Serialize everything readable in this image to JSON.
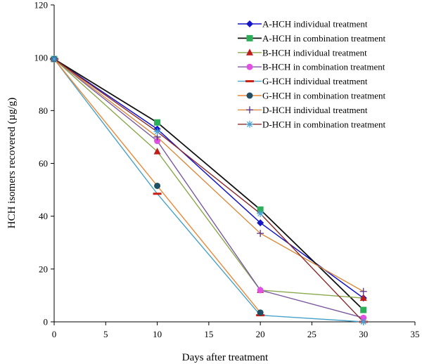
{
  "chart_data": {
    "type": "line",
    "title": "",
    "xlabel": "Days after treatment",
    "ylabel": "HCH isomers recovered (µg/g)",
    "xlim": [
      0,
      35
    ],
    "ylim": [
      0,
      120
    ],
    "xticks": [
      0,
      5,
      10,
      15,
      20,
      25,
      30,
      35
    ],
    "yticks": [
      0,
      20,
      40,
      60,
      80,
      100,
      120
    ],
    "grid": false,
    "legend_position": "top-right",
    "x": [
      0,
      10,
      20,
      30
    ],
    "series": [
      {
        "name": "A-HCH individual treatment",
        "values": [
          99.5,
          73,
          37.5,
          9
        ],
        "color": "#1515c8",
        "marker": "diamond"
      },
      {
        "name": "A-HCH in combination treatment",
        "values": [
          99.5,
          75.5,
          42.5,
          4.5
        ],
        "color": "#111111",
        "marker_color": "#2cae5a",
        "marker": "square"
      },
      {
        "name": "B-HCH individual treatment",
        "values": [
          99.5,
          64.5,
          12,
          9
        ],
        "color": "#8aa94e",
        "marker_color": "#c01c1c",
        "marker": "triangle"
      },
      {
        "name": "B-HCH in combination treatment",
        "values": [
          99.5,
          68.5,
          12,
          1.5
        ],
        "color": "#7b5aa0",
        "marker_color": "#e24fe3",
        "marker": "circle"
      },
      {
        "name": "G-HCH individual treatment",
        "values": [
          99.5,
          48.5,
          2.5,
          0
        ],
        "color": "#4aa3c8",
        "marker_color": "#cc1e12",
        "marker": "dash"
      },
      {
        "name": "G-HCH in combination treatment",
        "values": [
          99.5,
          51.5,
          3.5,
          null
        ],
        "color": "#e8893a",
        "marker_color": "#1f4f63",
        "marker": "circle"
      },
      {
        "name": "D-HCH individual treatment",
        "values": [
          99.5,
          70,
          33.5,
          11.5
        ],
        "color": "#d98c3e",
        "marker_color": "#5b2e86",
        "marker": "plus"
      },
      {
        "name": "D-HCH in combination treatment",
        "values": [
          99.5,
          72,
          41,
          0
        ],
        "color": "#8a2b2b",
        "marker_color": "#45a3d8",
        "marker": "asterisk"
      }
    ]
  }
}
